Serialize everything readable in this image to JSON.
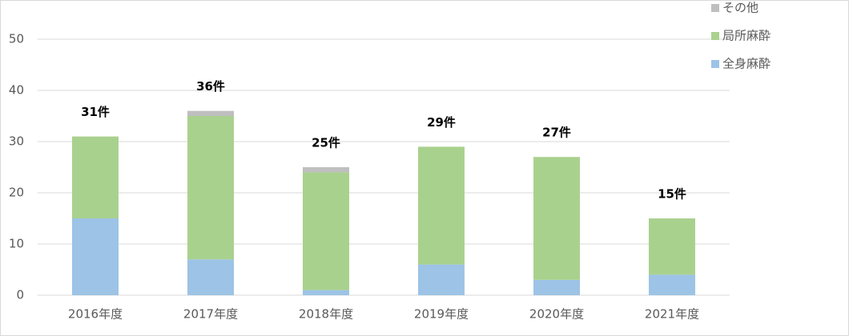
{
  "chart_data": {
    "type": "stacked-bar",
    "categories": [
      "2016年度",
      "2017年度",
      "2018年度",
      "2019年度",
      "2020年度",
      "2021年度"
    ],
    "series": [
      {
        "name": "全身麻酔",
        "color": "#9dc3e6",
        "values": [
          15,
          7,
          1,
          6,
          3,
          4
        ]
      },
      {
        "name": "局所麻酔",
        "color": "#a9d18e",
        "values": [
          16,
          28,
          23,
          23,
          24,
          11
        ]
      },
      {
        "name": "その他",
        "color": "#bfbfbf",
        "values": [
          0,
          1,
          1,
          0,
          0,
          0
        ]
      }
    ],
    "totals": [
      31,
      36,
      25,
      29,
      27,
      15
    ],
    "total_labels": [
      "31件",
      "36件",
      "25件",
      "29件",
      "27件",
      "15件"
    ],
    "ylim": [
      0,
      50
    ],
    "yticks": [
      0,
      10,
      20,
      30,
      40,
      50
    ],
    "grid": true,
    "legend": "top-right"
  }
}
